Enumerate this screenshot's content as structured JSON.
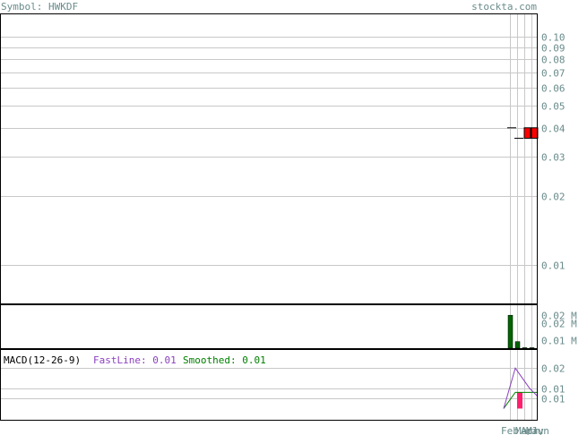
{
  "header": {
    "symbol_text": "Symbol: HWKDF",
    "site_text": "stockta.com"
  },
  "colors": {
    "label_text": "#6a8b8b",
    "grid": "#c8c8c8",
    "frame": "#000000",
    "candle_down": "#ff0000",
    "volume_bar": "#006400",
    "macd_fast": "#8b3fbf",
    "macd_smooth": "#008000",
    "macd_hist": "#ff1f6e"
  },
  "chart_data": [
    {
      "type": "candlestick",
      "scale": "log",
      "ytick_labels": [
        "0.10",
        "0.09",
        "0.08",
        "0.07",
        "0.06",
        "0.05",
        "0.04",
        "0.03",
        "0.02",
        "0.01"
      ],
      "ytick_values": [
        0.1,
        0.09,
        0.08,
        0.07,
        0.06,
        0.05,
        0.04,
        0.03,
        0.02,
        0.01
      ],
      "ylim": [
        0.0075,
        0.105
      ],
      "bars": [
        {
          "open": 0.04,
          "high": 0.04,
          "low": 0.04,
          "close": 0.04
        },
        {
          "open": 0.036,
          "high": 0.036,
          "low": 0.036,
          "close": 0.036
        },
        {
          "open": 0.04,
          "high": 0.04,
          "low": 0.036,
          "close": 0.036
        },
        {
          "open": 0.04,
          "high": 0.04,
          "low": 0.036,
          "close": 0.036
        }
      ]
    },
    {
      "type": "bar",
      "name": "volume",
      "ytick_labels": [
        "0.02 M",
        "0.02 M",
        "0.01 M"
      ],
      "ytick_values": [
        0.02,
        0.015,
        0.005
      ],
      "ylim": [
        0,
        0.025
      ],
      "values": [
        0.02,
        0.004,
        0.0003,
        0.0003
      ]
    },
    {
      "type": "line",
      "title": "MACD(12-26-9)",
      "legend": [
        {
          "label": "FastLine: 0.01",
          "color": "#8b3fbf"
        },
        {
          "label": "Smoothed: 0.01",
          "color": "#008000"
        }
      ],
      "ytick_labels": [
        "0.02",
        "0.01",
        "0.01"
      ],
      "ytick_values": [
        0.02,
        0.01,
        0.005
      ],
      "ylim": [
        -0.006,
        0.025
      ],
      "fast": [
        0.0,
        0.02,
        0.01,
        0.006
      ],
      "smooth": [
        0.0,
        0.008,
        0.008,
        0.008
      ],
      "hist": [
        0.0,
        0.008,
        0.0,
        0.0
      ]
    }
  ],
  "x_axis": {
    "tick_labels": [
      "Feb",
      "Mar",
      "Apr",
      "May",
      "Jun"
    ]
  }
}
